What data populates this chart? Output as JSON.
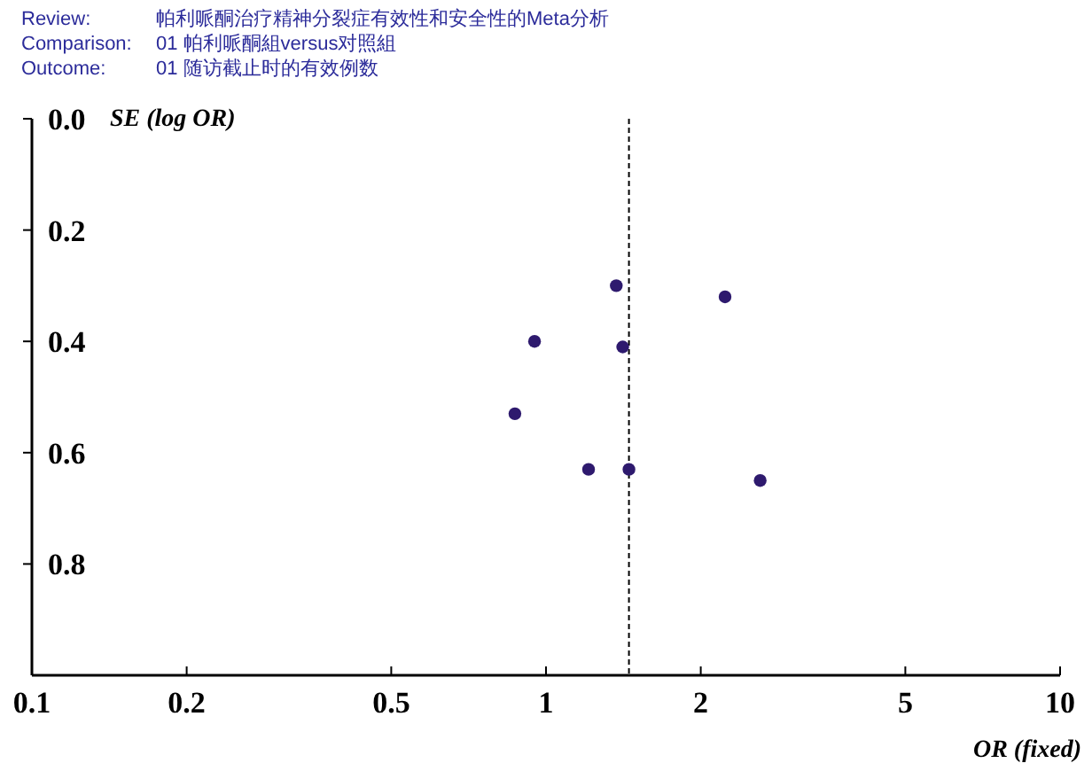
{
  "chart_data": {
    "type": "scatter",
    "annotations": [
      "Review:",
      "帕利哌酮治疗精神分裂症有效性和安全性的Meta分析",
      "Comparison:",
      "01 帕利哌酮組versus对照組",
      "Outcome:",
      "01 随访截止时的有效例数"
    ],
    "xlabel": "OR (fixed)",
    "ylabel": "SE (log OR)",
    "log": "x",
    "xlim": [
      0.1,
      10
    ],
    "xticks": [
      0.1,
      0.2,
      0.5,
      1,
      2,
      5,
      10
    ],
    "ylim": [
      1.0,
      0
    ],
    "yticks": [
      {
        "value": 0,
        "label": "0.0"
      },
      0.2,
      0.4,
      0.6,
      0.8
    ],
    "marker": "circle",
    "ref_lines": [
      {
        "axis": "x",
        "value": 1.45,
        "line_style": "dashed",
        "color": "#000000"
      }
    ],
    "series": [
      {
        "color": "#2e1a6e",
        "x": [
          1.37,
          2.23,
          0.95,
          1.41,
          0.87,
          1.21,
          1.45,
          2.61
        ],
        "values": [
          0.3,
          0.32,
          0.4,
          0.41,
          0.53,
          0.63,
          0.63,
          0.65
        ]
      }
    ]
  }
}
